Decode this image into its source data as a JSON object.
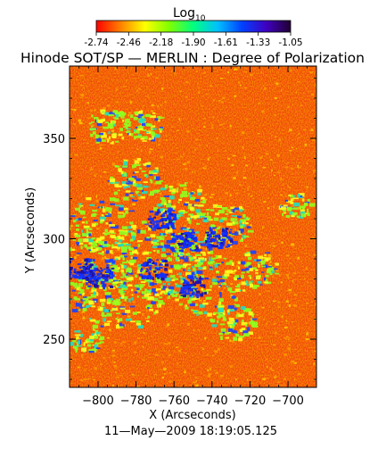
{
  "colorbar": {
    "label_main": "Log",
    "label_sub": "10",
    "ticks": [
      "-2.74",
      "-2.46",
      "-2.18",
      "-1.90",
      "-1.61",
      "-1.33",
      "-1.05"
    ],
    "range": [
      -2.74,
      -1.05
    ],
    "colors": [
      "#ff0000",
      "#ff8000",
      "#ffff00",
      "#80ff00",
      "#00ff80",
      "#00c0ff",
      "#0040ff",
      "#4000c0",
      "#200030"
    ]
  },
  "chart_data": {
    "type": "heatmap",
    "title": "Hinode SOT/SP — MERLIN : Degree of Polarization",
    "xlabel": "X (Arcseconds)",
    "ylabel": "Y (Arcseconds)",
    "xlim": [
      -815,
      -685
    ],
    "ylim": [
      226,
      386
    ],
    "xticks": [
      -800,
      -780,
      -760,
      -740,
      -720,
      -700
    ],
    "yticks": [
      250,
      300,
      350
    ],
    "xtick_labels": [
      "−800",
      "−780",
      "−760",
      "−740",
      "−720",
      "−700"
    ],
    "ytick_labels": [
      "250",
      "300",
      "350"
    ],
    "colorscale": "log10 degree of polarization",
    "background_color": "#f04a0a"
  },
  "footer": {
    "timestamp": "11—May—2009 18:19:05.125"
  }
}
